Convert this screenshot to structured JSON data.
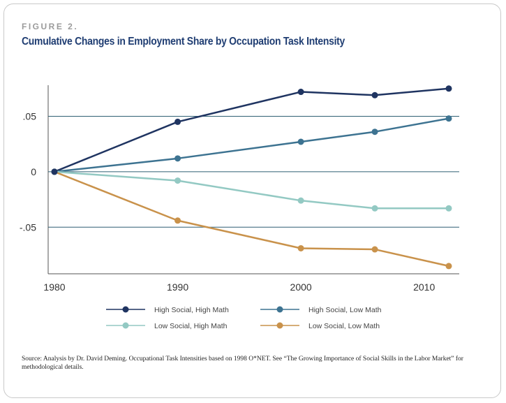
{
  "header": {
    "eyebrow": "FIGURE 2.",
    "title": "Cumulative Changes in Employment Share by Occupation Task Intensity"
  },
  "source_note": "Source: Analysis by Dr. David Deming. Occupational Task Intensities based on 1998 O*NET. See “The Growing Importance of Social Skills in the Labor Market” for methodological details.",
  "chart_data": {
    "type": "line",
    "title": "Cumulative Changes in Employment Share by Occupation Task Intensity",
    "xlabel": "",
    "ylabel": "",
    "xlim": [
      1980,
      2012
    ],
    "ylim": [
      -0.092,
      0.078
    ],
    "x_ticks": [
      1980,
      1990,
      2000,
      2010
    ],
    "x_tick_labels": [
      "1980",
      "1990",
      "2000",
      "2010"
    ],
    "y_ticks": [
      0.05,
      0,
      -0.05
    ],
    "y_tick_labels": [
      ".05",
      "0",
      "-.05"
    ],
    "grid": "horizontal",
    "legend_position": "bottom",
    "x": [
      1980,
      1990,
      2000,
      2006,
      2012
    ],
    "series": [
      {
        "name": "High Social, High Math",
        "color": "#1f3461",
        "values": [
          0,
          0.045,
          0.072,
          0.069,
          0.075
        ]
      },
      {
        "name": "High Social, Low Math",
        "color": "#3d7391",
        "values": [
          0,
          0.012,
          0.027,
          0.036,
          0.048
        ]
      },
      {
        "name": "Low Social, High Math",
        "color": "#93c9c3",
        "values": [
          0,
          -0.008,
          -0.026,
          -0.033,
          -0.033
        ]
      },
      {
        "name": "Low Social, Low Math",
        "color": "#c9924b",
        "values": [
          0,
          -0.044,
          -0.069,
          -0.07,
          -0.085
        ]
      }
    ]
  }
}
